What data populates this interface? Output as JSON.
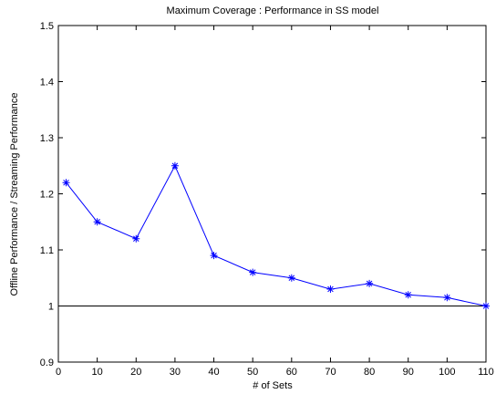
{
  "chart_data": {
    "type": "line",
    "title": "Maximum Coverage : Performance in SS model",
    "xlabel": "# of Sets",
    "ylabel": "Offline Performance / Streaming Performance",
    "xlim": [
      0,
      110
    ],
    "ylim": [
      0.9,
      1.5
    ],
    "xticks": [
      "0",
      "10",
      "20",
      "30",
      "40",
      "50",
      "60",
      "70",
      "80",
      "90",
      "100",
      "110"
    ],
    "yticks": [
      "0.9",
      "1",
      "1.1",
      "1.2",
      "1.3",
      "1.4",
      "1.5"
    ],
    "grid": false,
    "series": [
      {
        "color": "#0000ff",
        "marker": "asterisk",
        "x": [
          2,
          10,
          20,
          30,
          40,
          50,
          60,
          70,
          80,
          90,
          100,
          110
        ],
        "y": [
          1.22,
          1.15,
          1.12,
          1.25,
          1.09,
          1.06,
          1.05,
          1.03,
          1.04,
          1.02,
          1.015,
          1.0
        ]
      }
    ],
    "reference_line": {
      "y": 1.0,
      "color": "#000000"
    }
  }
}
